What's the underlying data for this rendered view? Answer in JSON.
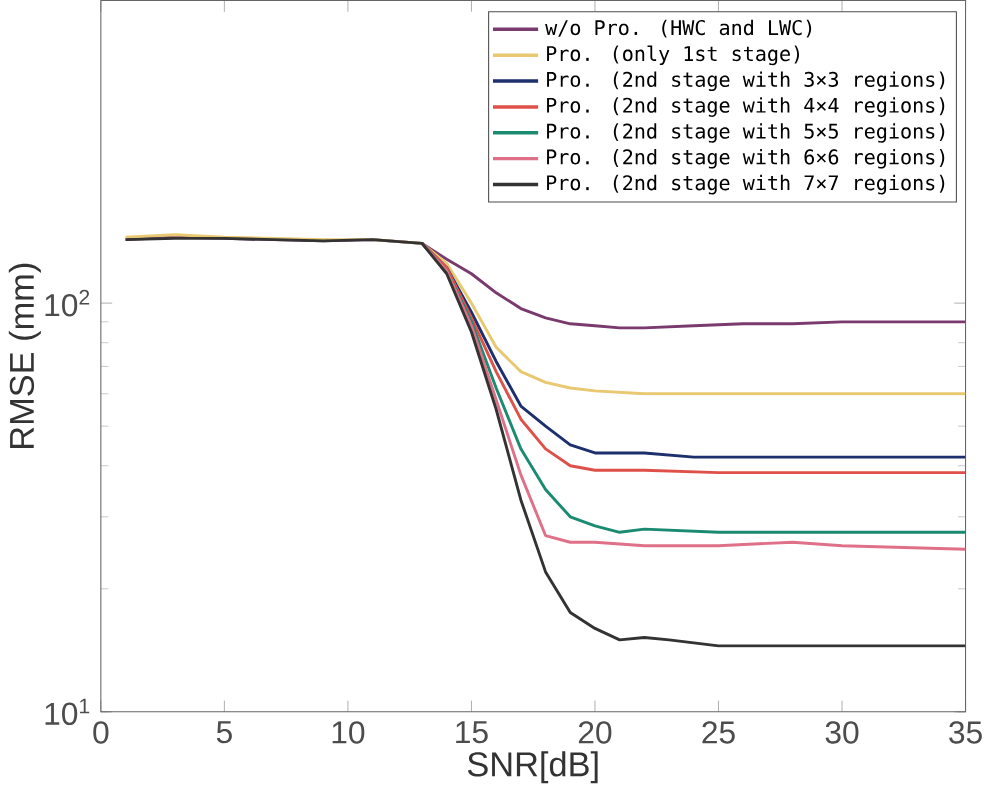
{
  "chart_data": {
    "type": "line",
    "xlabel": "SNR[dB]",
    "ylabel": "RMSE (mm)",
    "log": "y",
    "xlim": [
      0,
      35
    ],
    "ylim": [
      10,
      550
    ],
    "xticks": [
      0,
      5,
      10,
      15,
      20,
      25,
      30,
      35
    ],
    "yticks": [
      {
        "value": 10,
        "label": "10$^{1}$"
      },
      {
        "value": 100,
        "label": "10$^{2}$"
      }
    ],
    "legend": "top right",
    "grid": false,
    "marker": "none",
    "line_style": "solid",
    "series": [
      {
        "name": "w/o Pro. (HWC and LWC)",
        "color": "#7a3a6e",
        "x": [
          1,
          3,
          5,
          7,
          9,
          11,
          13,
          14,
          15,
          16,
          17,
          18,
          19,
          20,
          21,
          22,
          24,
          26,
          28,
          30,
          32,
          35
        ],
        "values": [
          143,
          145,
          144,
          143,
          142,
          143,
          140,
          128,
          118,
          106,
          97,
          92,
          89,
          88,
          87,
          87,
          88,
          89,
          89,
          90,
          90,
          90
        ]
      },
      {
        "name": "Pro. (only 1st stage)",
        "color": "#e8c870",
        "x": [
          1,
          3,
          5,
          7,
          9,
          11,
          13,
          14,
          15,
          16,
          17,
          18,
          19,
          20,
          22,
          25,
          30,
          35
        ],
        "values": [
          145,
          147,
          145,
          144,
          143,
          143,
          140,
          125,
          100,
          78,
          68,
          64,
          62,
          61,
          60,
          60,
          60,
          60
        ]
      },
      {
        "name": "Pro. (2nd stage with 3×3 regions)",
        "color": "#1e2f6e",
        "x": [
          13,
          14,
          15,
          16,
          17,
          18,
          19,
          20,
          21,
          22,
          24,
          26,
          30,
          35
        ],
        "values": [
          140,
          122,
          95,
          72,
          56,
          50,
          45,
          43,
          43,
          43,
          42,
          42,
          42,
          42
        ]
      },
      {
        "name": "Pro. (2nd stage with 4×4 regions)",
        "color": "#e0504a",
        "x": [
          13,
          14,
          15,
          16,
          17,
          18,
          19,
          20,
          22,
          25,
          30,
          35
        ],
        "values": [
          140,
          122,
          92,
          68,
          52,
          44,
          40,
          39,
          39,
          38.5,
          38.5,
          38.5
        ]
      },
      {
        "name": "Pro. (2nd stage with 5×5 regions)",
        "color": "#1a8a70",
        "x": [
          13,
          14,
          15,
          16,
          17,
          18,
          19,
          20,
          21,
          22,
          25,
          30,
          35
        ],
        "values": [
          140,
          120,
          90,
          62,
          44,
          35,
          30,
          28.5,
          27.5,
          28,
          27.5,
          27.5,
          27.5
        ]
      },
      {
        "name": "Pro. (2nd stage with 6×6 regions)",
        "color": "#e07088",
        "x": [
          13,
          14,
          15,
          16,
          17,
          18,
          19,
          20,
          22,
          25,
          28,
          30,
          35
        ],
        "values": [
          140,
          120,
          88,
          58,
          38,
          27,
          26,
          26,
          25.5,
          25.5,
          26,
          25.5,
          25
        ]
      },
      {
        "name": "Pro. (2nd stage with 7×7 regions)",
        "color": "#333333",
        "x": [
          1,
          3,
          5,
          7,
          9,
          11,
          13,
          14,
          15,
          16,
          17,
          18,
          19,
          20,
          21,
          22,
          23,
          25,
          30,
          35
        ],
        "values": [
          143,
          144,
          144,
          143,
          142,
          143,
          140,
          118,
          85,
          55,
          33,
          22,
          17.5,
          16,
          15,
          15.2,
          15,
          14.5,
          14.5,
          14.5
        ]
      }
    ]
  }
}
